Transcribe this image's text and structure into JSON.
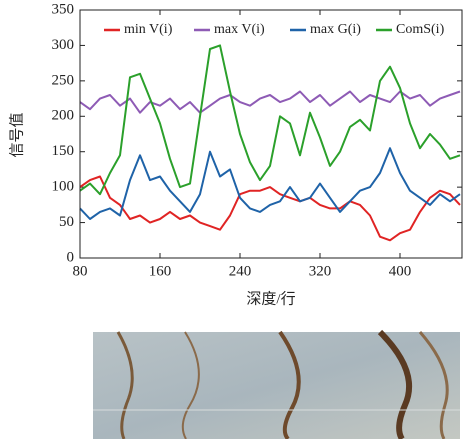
{
  "chart_data": {
    "type": "line",
    "x_label": "深度/行",
    "y_label": "信号值",
    "x": [
      80,
      90,
      100,
      110,
      120,
      130,
      140,
      150,
      160,
      170,
      180,
      190,
      200,
      210,
      220,
      230,
      240,
      250,
      260,
      270,
      280,
      290,
      300,
      310,
      320,
      330,
      340,
      350,
      360,
      370,
      380,
      390,
      400,
      410,
      420,
      430,
      440,
      450,
      460
    ],
    "series": [
      {
        "name": "min V(i)",
        "color": "#e02424",
        "values": [
          100,
          110,
          115,
          85,
          75,
          55,
          60,
          50,
          55,
          65,
          55,
          60,
          50,
          45,
          40,
          60,
          90,
          95,
          95,
          100,
          90,
          85,
          80,
          85,
          75,
          70,
          70,
          80,
          75,
          60,
          30,
          25,
          35,
          40,
          65,
          85,
          95,
          90,
          75
        ]
      },
      {
        "name": "max V(i)",
        "color": "#8e5bb5",
        "values": [
          220,
          210,
          225,
          230,
          215,
          225,
          205,
          220,
          215,
          225,
          210,
          220,
          205,
          215,
          225,
          230,
          220,
          215,
          225,
          230,
          220,
          225,
          235,
          220,
          230,
          215,
          225,
          235,
          220,
          230,
          225,
          220,
          235,
          225,
          230,
          215,
          225,
          230,
          235
        ]
      },
      {
        "name": "max G(i)",
        "color": "#1f63a8",
        "values": [
          70,
          55,
          65,
          70,
          60,
          110,
          145,
          110,
          115,
          95,
          80,
          65,
          90,
          150,
          115,
          125,
          85,
          70,
          65,
          75,
          80,
          100,
          80,
          85,
          105,
          85,
          65,
          80,
          95,
          100,
          120,
          155,
          120,
          95,
          85,
          75,
          90,
          80,
          90
        ]
      },
      {
        "name": "ComS(i)",
        "color": "#2ba02b",
        "values": [
          95,
          105,
          90,
          120,
          145,
          255,
          260,
          225,
          190,
          140,
          100,
          105,
          200,
          295,
          300,
          235,
          175,
          135,
          110,
          130,
          200,
          190,
          145,
          205,
          170,
          130,
          150,
          185,
          195,
          180,
          250,
          270,
          240,
          190,
          155,
          175,
          160,
          140,
          145
        ]
      }
    ],
    "xlim": [
      80,
      462
    ],
    "ylim": [
      0,
      350
    ],
    "xticks": [
      80,
      160,
      240,
      320,
      400
    ],
    "yticks": [
      0,
      50,
      100,
      150,
      200,
      250,
      300,
      350
    ],
    "legend": "top"
  }
}
